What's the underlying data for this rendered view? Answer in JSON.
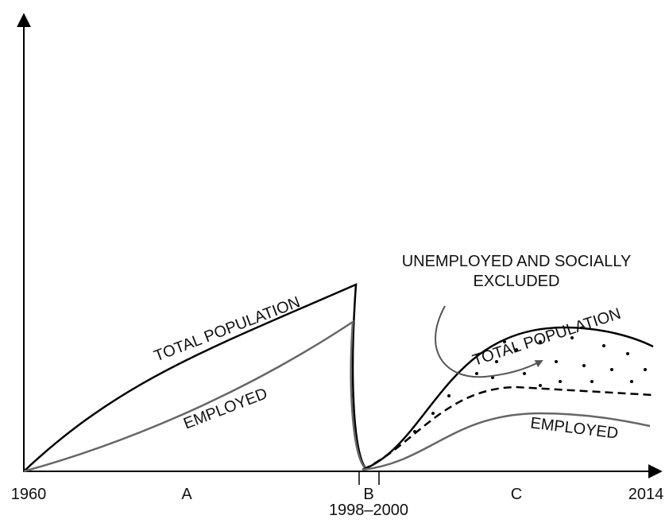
{
  "annotation": {
    "lines": [
      "UNEMPLOYED AND SOCIALLY",
      "EXCLUDED"
    ]
  },
  "curves": {
    "total_population_before": "TOTAL POPULATION",
    "employed_before": "EMPLOYED",
    "total_population_after": "TOTAL POPULATION",
    "employed_after": "EMPLOYED"
  },
  "x_axis": {
    "start": "1960",
    "end": "2014",
    "periods": [
      "A",
      "B",
      "C"
    ],
    "b_range": "1998–2000"
  }
}
